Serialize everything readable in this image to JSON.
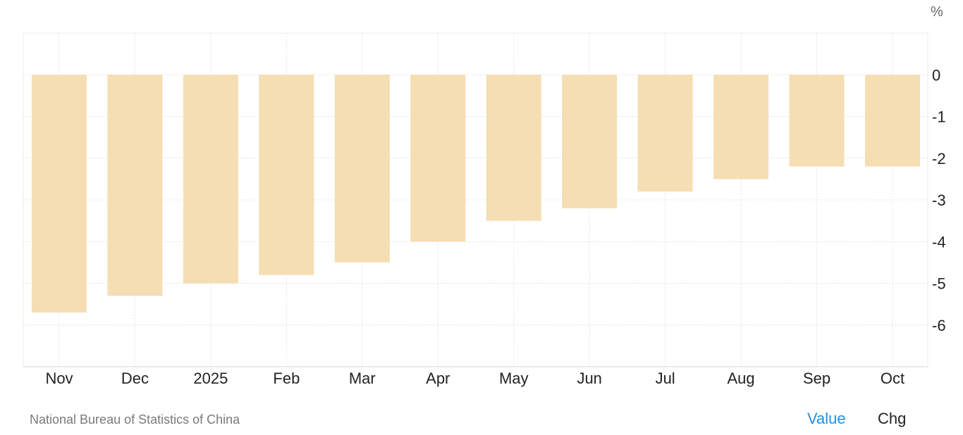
{
  "chart_data": {
    "type": "bar",
    "unit": "%",
    "categories": [
      "Nov",
      "Dec",
      "2025",
      "Feb",
      "Mar",
      "Apr",
      "May",
      "Jun",
      "Jul",
      "Aug",
      "Sep",
      "Oct"
    ],
    "values": [
      -5.7,
      -5.3,
      -5.0,
      -4.8,
      -4.5,
      -4.0,
      -3.5,
      -3.2,
      -2.8,
      -2.5,
      -2.2,
      -2.2
    ],
    "yticks": [
      0,
      -1,
      -2,
      -3,
      -4,
      -5,
      -6
    ],
    "ylim": [
      -7,
      1
    ],
    "grid": true,
    "bar_color": "#f5deb3"
  },
  "footer": {
    "source": "National Bureau of Statistics of China",
    "toggles": {
      "value": "Value",
      "chg": "Chg"
    },
    "active_toggle": "value",
    "active_color": "#1e90e6"
  }
}
